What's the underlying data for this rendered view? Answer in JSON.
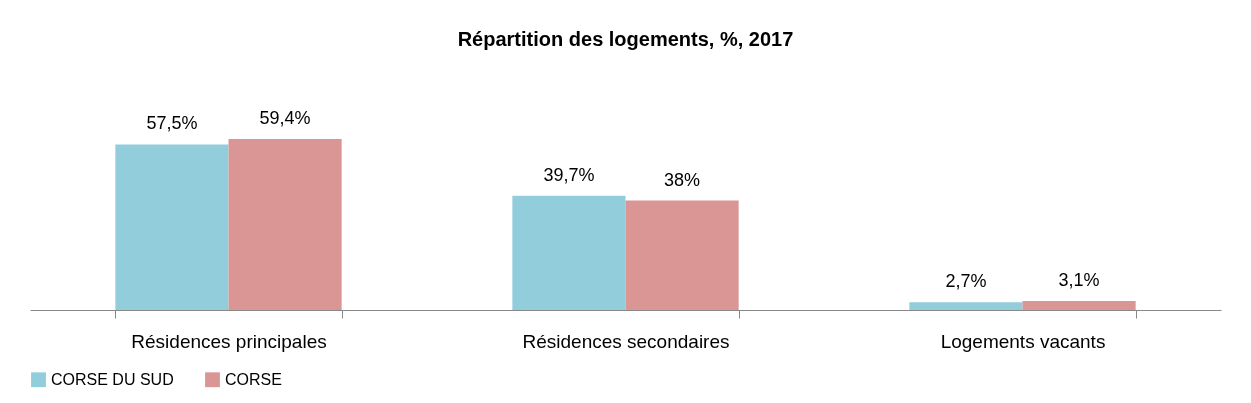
{
  "chart_data": {
    "type": "bar",
    "title": "Répartition des logements, %, 2017",
    "categories": [
      "Résidences principales",
      "Résidences secondaires",
      "Logements vacants"
    ],
    "series": [
      {
        "name": "CORSE DU SUD",
        "color": "#92cddc",
        "values": [
          57.5,
          39.7,
          2.7
        ],
        "value_labels": [
          "57,5%",
          "39,7%",
          "2,7%"
        ]
      },
      {
        "name": "CORSE",
        "color": "#d99694",
        "values": [
          59.4,
          38,
          3.1
        ],
        "value_labels": [
          "59,4%",
          "38%",
          "3,1%"
        ]
      }
    ],
    "legend": "bottom"
  }
}
